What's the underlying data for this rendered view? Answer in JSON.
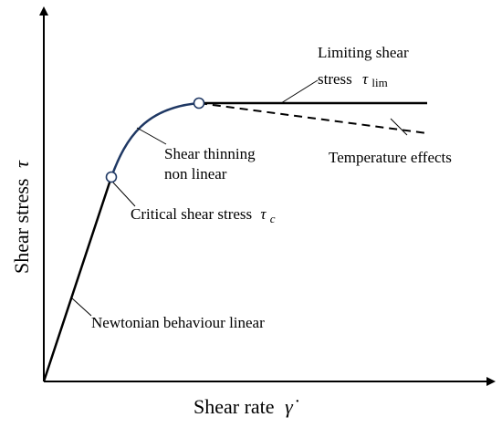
{
  "diagram": {
    "axes": {
      "x_label": "Shear rate",
      "x_symbol": "γ̇",
      "y_label": "Shear stress",
      "y_symbol": "τ"
    },
    "annotations": {
      "newtonian": "Newtonian behaviour linear",
      "critical_text": "Critical shear stress",
      "critical_symbol": "τ",
      "critical_subscript": "c",
      "shear_thinning_line1": "Shear thinning",
      "shear_thinning_line2": "non linear",
      "limiting_line1": "Limiting shear",
      "limiting_line2": "stress",
      "limiting_symbol": "τ",
      "limiting_subscript": "lim",
      "temperature": "Temperature effects"
    },
    "colors": {
      "curve": "#000000",
      "curve_bend": "#1f3864",
      "markers": "#1f3864",
      "text": "#000000"
    }
  }
}
